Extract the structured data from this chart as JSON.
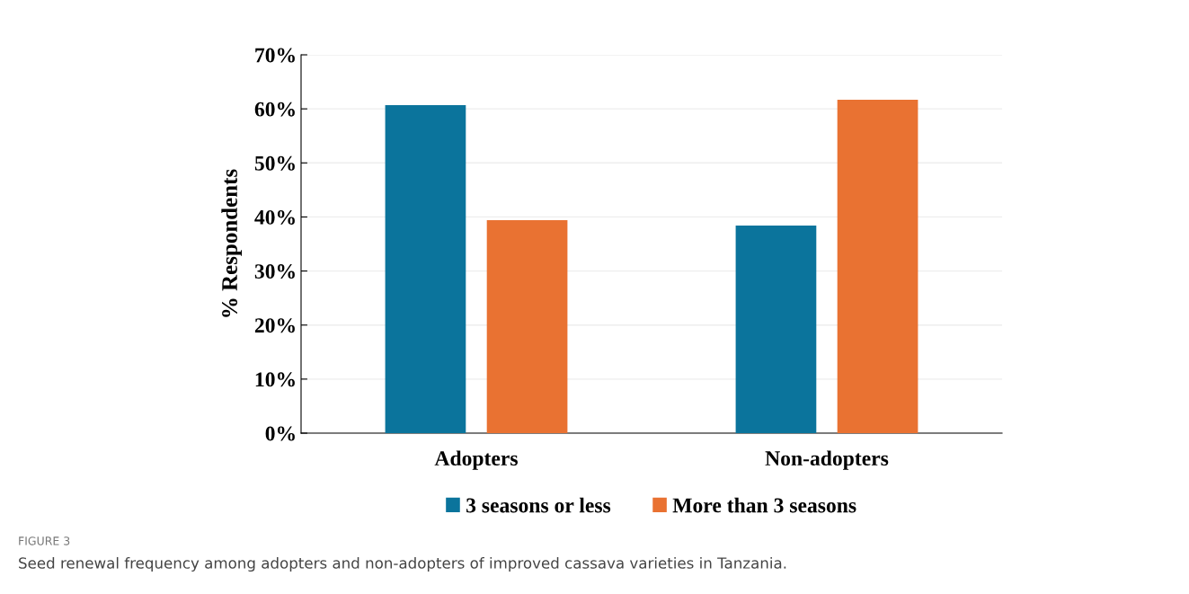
{
  "chart_data": {
    "type": "bar",
    "ylabel": "% Respondents",
    "categories": [
      "Adopters",
      "Non-adopters"
    ],
    "series": [
      {
        "name": "3 seasons or less",
        "color": "#0b749c",
        "values": [
          60.7,
          38.4
        ]
      },
      {
        "name": "More than 3 seasons",
        "color": "#e97232",
        "values": [
          39.4,
          61.7
        ]
      }
    ],
    "ylim": [
      0,
      70
    ],
    "yticks": [
      {
        "value": 0,
        "label": "0%"
      },
      {
        "value": 10,
        "label": "10%"
      },
      {
        "value": 20,
        "label": "20%"
      },
      {
        "value": 30,
        "label": "30%"
      },
      {
        "value": 40,
        "label": "40%"
      },
      {
        "value": 50,
        "label": "50%"
      },
      {
        "value": 60,
        "label": "60%"
      },
      {
        "value": 70,
        "label": "70%"
      }
    ],
    "grid": "y",
    "legend": "bottom",
    "annotations": [
      "FIGURE 3",
      "Seed renewal frequency among adopters and non-adopters of improved cassava varieties in Tanzania."
    ]
  }
}
